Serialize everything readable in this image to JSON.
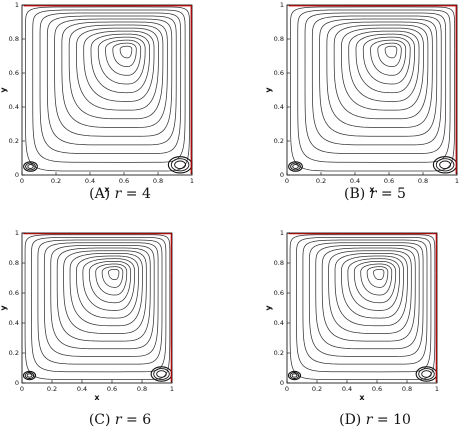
{
  "chart_data": [
    {
      "type": "contour",
      "caption": "(A) r = 4",
      "caption_label": "(A)",
      "caption_var": "r",
      "caption_value": "4",
      "xlabel": "x",
      "ylabel": "y",
      "xlim": [
        0,
        1
      ],
      "ylim": [
        0,
        1
      ],
      "xticks": [
        "0",
        "0.2",
        "0.4",
        "0.6",
        "0.8",
        "1"
      ],
      "yticks": [
        "0",
        "0.2",
        "0.4",
        "0.6",
        "0.8",
        "1"
      ],
      "primary_vortex_center": [
        0.62,
        0.74
      ],
      "corner_vortices": [
        [
          0.05,
          0.05
        ],
        [
          0.93,
          0.06
        ]
      ],
      "boundary_color": "#cc0000",
      "contour_levels": 14
    },
    {
      "type": "contour",
      "caption": "(B) r = 5",
      "caption_label": "(B)",
      "caption_var": "r",
      "caption_value": "5",
      "xlabel": "x",
      "ylabel": "y",
      "xlim": [
        0,
        1
      ],
      "ylim": [
        0,
        1
      ],
      "xticks": [
        "0",
        "0.2",
        "0.4",
        "0.6",
        "0.8",
        "1"
      ],
      "yticks": [
        "0",
        "0.2",
        "0.4",
        "0.6",
        "0.8",
        "1"
      ],
      "primary_vortex_center": [
        0.62,
        0.74
      ],
      "corner_vortices": [
        [
          0.05,
          0.05
        ],
        [
          0.93,
          0.06
        ]
      ],
      "boundary_color": "#cc0000",
      "contour_levels": 14
    },
    {
      "type": "contour",
      "caption": "(C) r = 6",
      "caption_label": "(C)",
      "caption_var": "r",
      "caption_value": "6",
      "xlabel": "x",
      "ylabel": "y",
      "xlim": [
        0,
        1
      ],
      "ylim": [
        0,
        1
      ],
      "xticks": [
        "0",
        "0.2",
        "0.4",
        "0.6",
        "0.8",
        "1"
      ],
      "yticks": [
        "0",
        "0.2",
        "0.4",
        "0.6",
        "0.8",
        "1"
      ],
      "primary_vortex_center": [
        0.62,
        0.74
      ],
      "corner_vortices": [
        [
          0.05,
          0.05
        ],
        [
          0.93,
          0.06
        ]
      ],
      "boundary_color": "#cc0000",
      "contour_levels": 14
    },
    {
      "type": "contour",
      "caption": "(D) r = 10",
      "caption_label": "(D)",
      "caption_var": "r",
      "caption_value": "10",
      "xlabel": "x",
      "ylabel": "y",
      "xlim": [
        0,
        1
      ],
      "ylim": [
        0,
        1
      ],
      "xticks": [
        "0",
        "0.2",
        "0.4",
        "0.6",
        "0.8",
        "1"
      ],
      "yticks": [
        "0",
        "0.2",
        "0.4",
        "0.6",
        "0.8",
        "1"
      ],
      "primary_vortex_center": [
        0.62,
        0.74
      ],
      "corner_vortices": [
        [
          0.05,
          0.05
        ],
        [
          0.93,
          0.06
        ]
      ],
      "boundary_color": "#cc0000",
      "contour_levels": 14
    }
  ]
}
